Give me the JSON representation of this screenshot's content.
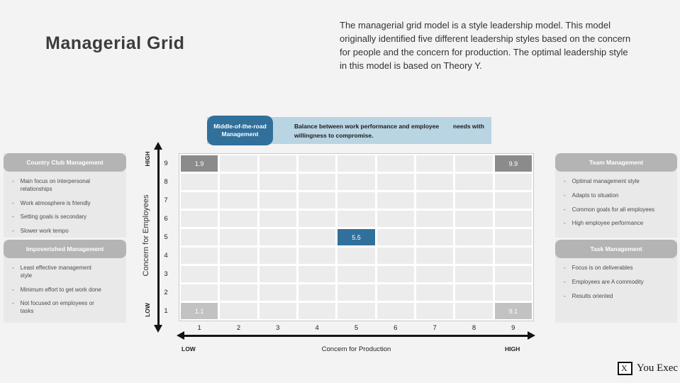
{
  "slide": {
    "title": "Managerial Grid",
    "intro": "The managerial grid model is a style leadership model. This model originally identified five different leadership styles based on the concern for people and the concern for production. The optimal leadership style in this model is based on Theory Y."
  },
  "callout": {
    "title": "Middle-of-the-road Management",
    "desc_line1": "Balance between work performance and employee",
    "desc_note": "needs with",
    "desc_line2": "willingness to compromise."
  },
  "panels": [
    {
      "title": "Country Club Management",
      "bullets": [
        "Main focus on interpersonal relationships",
        "Work atmosphere is friendly",
        "Setting goals is secondary",
        "Slower work tempo"
      ]
    },
    {
      "title": "Impoverished Management",
      "bullets": [
        "Least effective management style",
        "Minimum effort to get work done",
        "Not focused on employees or tasks"
      ]
    },
    {
      "title": "Team Management",
      "bullets": [
        "Optimal management style",
        "Adapts to situation",
        "Common goals for all employees",
        "High employee performance"
      ]
    },
    {
      "title": "Task Management",
      "bullets": [
        "Focus is on deliverables",
        "Employees are A commodity",
        "Results oriented"
      ]
    }
  ],
  "chart_data": {
    "type": "heatmap",
    "title": "Managerial Grid",
    "xlabel": "Concern for Production",
    "ylabel": "Concern for Employees",
    "x_ticks": [
      1,
      2,
      3,
      4,
      5,
      6,
      7,
      8,
      9
    ],
    "y_ticks": [
      9,
      8,
      7,
      6,
      5,
      4,
      3,
      2,
      1
    ],
    "x_low_label": "LOW",
    "x_high_label": "HIGH",
    "y_low_label": "LOW",
    "y_high_label": "HIGH",
    "cols": 9,
    "rows": 9,
    "highlights": [
      {
        "col": 1,
        "row": 9,
        "label": "1.9",
        "style": "dark"
      },
      {
        "col": 9,
        "row": 9,
        "label": "9.9",
        "style": "dark"
      },
      {
        "col": 5,
        "row": 5,
        "label": "5.5",
        "style": "blue"
      },
      {
        "col": 1,
        "row": 1,
        "label": "1.1",
        "style": "light"
      },
      {
        "col": 9,
        "row": 1,
        "label": "9.1",
        "style": "light"
      }
    ]
  },
  "colors": {
    "accent_blue": "#30709b",
    "band_blue": "#b9d4e3",
    "header_gray": "#b4b4b4",
    "panel_gray": "#e9e9e9",
    "cell_gray": "#ececec",
    "highlight_dark": "#8b8b8b",
    "highlight_light": "#c2c2c2",
    "axis_black": "#141414"
  },
  "logo": {
    "mark": "X",
    "text": "You Exec"
  }
}
